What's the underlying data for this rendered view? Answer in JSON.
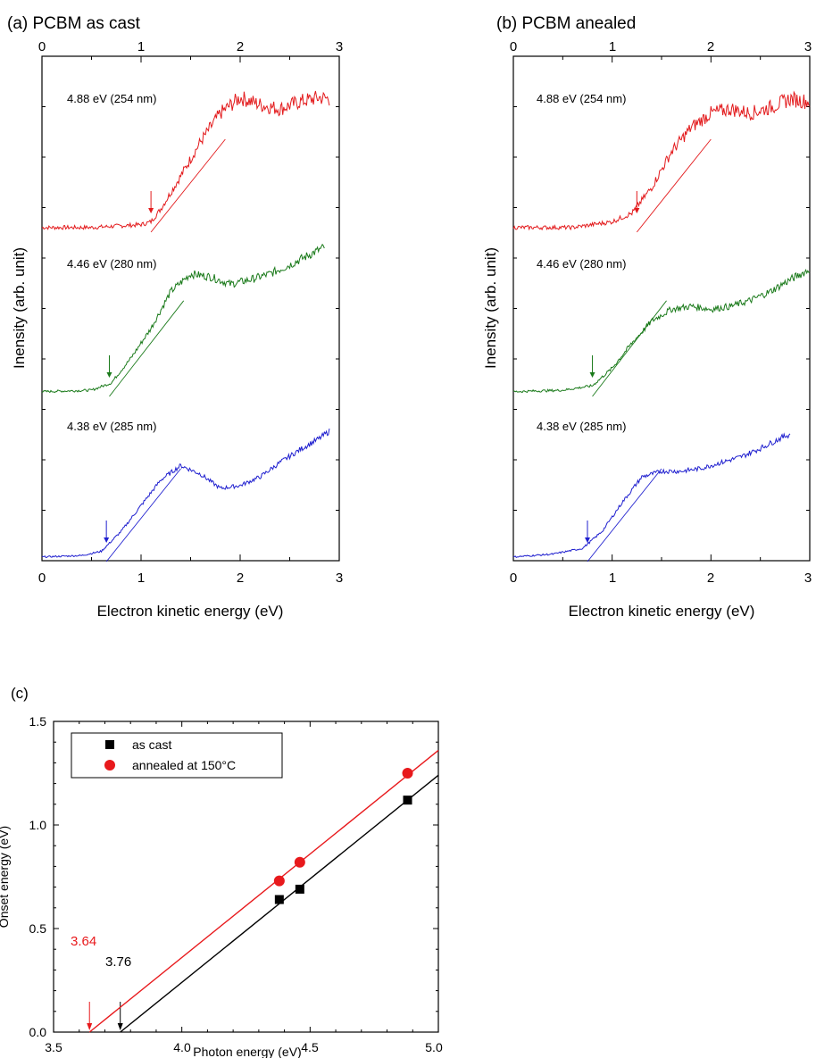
{
  "chart_data": [
    {
      "type": "line",
      "title": "(a) PCBM as cast",
      "xlabel": "Electron kinetic energy (eV)",
      "ylabel": "Inensity (arb. unit)",
      "xlim": [
        0,
        3
      ],
      "x_ticks": [
        "0",
        "1",
        "2",
        "3"
      ],
      "top_axis_ticks": [
        "0",
        "1",
        "2",
        "3"
      ],
      "y_ticks_labeled": false,
      "series": [
        {
          "name": "4.88 eV (254 nm)",
          "color": "#e31a1c",
          "onset_ev": 1.1,
          "x": [
            0.0,
            0.5,
            1.0,
            1.1,
            1.2,
            1.4,
            1.6,
            1.8,
            2.0,
            2.2,
            2.4,
            2.6,
            2.8,
            2.9
          ],
          "y": [
            0.02,
            0.02,
            0.04,
            0.06,
            0.15,
            0.38,
            0.62,
            0.82,
            0.93,
            0.88,
            0.85,
            0.9,
            0.93,
            0.92
          ]
        },
        {
          "name": "4.46 eV (280 nm)",
          "color": "#1a7a1a",
          "onset_ev": 0.68,
          "x": [
            0.0,
            0.5,
            0.7,
            0.9,
            1.1,
            1.3,
            1.5,
            1.7,
            1.9,
            2.1,
            2.3,
            2.5,
            2.7,
            2.85
          ],
          "y": [
            0.02,
            0.03,
            0.08,
            0.25,
            0.45,
            0.7,
            0.82,
            0.8,
            0.75,
            0.78,
            0.82,
            0.88,
            0.95,
            1.0
          ]
        },
        {
          "name": "4.38 eV (285 nm)",
          "color": "#1f1fcf",
          "onset_ev": 0.65,
          "x": [
            0.0,
            0.4,
            0.6,
            0.8,
            1.0,
            1.2,
            1.4,
            1.6,
            1.8,
            2.0,
            2.2,
            2.4,
            2.6,
            2.8,
            2.9
          ],
          "y": [
            0.02,
            0.03,
            0.06,
            0.2,
            0.38,
            0.56,
            0.66,
            0.6,
            0.5,
            0.52,
            0.58,
            0.68,
            0.77,
            0.85,
            0.9
          ]
        }
      ]
    },
    {
      "type": "line",
      "title": "(b) PCBM anealed",
      "xlabel": "Electron kinetic energy (eV)",
      "ylabel": "Inensity (arb. unit)",
      "xlim": [
        0,
        3
      ],
      "x_ticks": [
        "0",
        "1",
        "2",
        "3"
      ],
      "top_axis_ticks": [
        "0",
        "1",
        "2",
        "3"
      ],
      "y_ticks_labeled": false,
      "series": [
        {
          "name": "4.88 eV (254 nm)",
          "color": "#e31a1c",
          "onset_ev": 1.25,
          "x": [
            0.0,
            0.6,
            1.0,
            1.2,
            1.4,
            1.6,
            1.8,
            2.0,
            2.2,
            2.4,
            2.6,
            2.8,
            3.0
          ],
          "y": [
            0.02,
            0.02,
            0.06,
            0.12,
            0.3,
            0.55,
            0.72,
            0.82,
            0.85,
            0.82,
            0.86,
            0.92,
            0.9
          ]
        },
        {
          "name": "4.46 eV (280 nm)",
          "color": "#1a7a1a",
          "onset_ev": 0.8,
          "x": [
            0.0,
            0.5,
            0.8,
            1.0,
            1.2,
            1.4,
            1.6,
            1.8,
            2.0,
            2.2,
            2.4,
            2.6,
            2.8,
            3.0
          ],
          "y": [
            0.02,
            0.03,
            0.06,
            0.18,
            0.35,
            0.5,
            0.58,
            0.6,
            0.58,
            0.6,
            0.64,
            0.7,
            0.78,
            0.85
          ]
        },
        {
          "name": "4.38 eV (285 nm)",
          "color": "#1f1fcf",
          "onset_ev": 0.75,
          "x": [
            0.0,
            0.4,
            0.7,
            0.9,
            1.1,
            1.3,
            1.5,
            1.7,
            1.9,
            2.1,
            2.3,
            2.5,
            2.7,
            2.8
          ],
          "y": [
            0.02,
            0.04,
            0.08,
            0.2,
            0.4,
            0.58,
            0.62,
            0.62,
            0.64,
            0.68,
            0.72,
            0.78,
            0.85,
            0.88
          ]
        }
      ]
    },
    {
      "type": "scatter",
      "title": "(c)",
      "xlabel": "Photon energy (eV)",
      "ylabel": "Onset energy (eV)",
      "xlim": [
        3.5,
        5.0
      ],
      "ylim": [
        0.0,
        1.5
      ],
      "x_ticks": [
        "3.5",
        "4.0",
        "4.5",
        "5.0"
      ],
      "y_ticks": [
        "0.0",
        "0.5",
        "1.0",
        "1.5"
      ],
      "legend": {
        "position": "top-left",
        "entries": [
          "as cast",
          "annealed at 150°C"
        ]
      },
      "series": [
        {
          "name": "as cast",
          "color": "#000000",
          "marker": "square",
          "x": [
            4.38,
            4.46,
            4.88
          ],
          "y": [
            0.64,
            0.69,
            1.12
          ],
          "fit_line": {
            "x": [
              3.76,
              5.0
            ],
            "y": [
              0.0,
              1.24
            ]
          },
          "intercept_label": "3.76",
          "intercept": 3.76
        },
        {
          "name": "annealed at 150°C",
          "color": "#e8191c",
          "marker": "circle",
          "x": [
            4.38,
            4.46,
            4.88
          ],
          "y": [
            0.73,
            0.82,
            1.25
          ],
          "fit_line": {
            "x": [
              3.64,
              5.0
            ],
            "y": [
              0.0,
              1.36
            ]
          },
          "intercept_label": "3.64",
          "intercept": 3.64
        }
      ]
    }
  ]
}
